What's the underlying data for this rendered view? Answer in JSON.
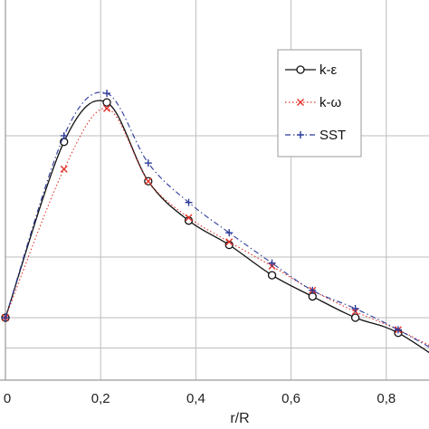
{
  "chart_data": {
    "type": "line",
    "title": "",
    "xlabel": "r/R",
    "ylabel": "",
    "xlim": [
      0,
      0.95
    ],
    "ylim": [
      0,
      1.0
    ],
    "xticks": [
      "0",
      "0,2",
      "0,4",
      "0,6",
      "0,8"
    ],
    "xtick_values": [
      0,
      0.2,
      0.4,
      0.6,
      0.8
    ],
    "ytick_values": [
      0.1,
      0.2,
      0.4,
      0.8
    ],
    "grid": true,
    "legend_position": "top-right",
    "series": [
      {
        "name": "k-ε",
        "color": "#111111",
        "line_style": "solid",
        "marker": "circle",
        "x": [
          0.0,
          0.123,
          0.213,
          0.3,
          0.385,
          0.47,
          0.56,
          0.645,
          0.735,
          0.825,
          0.95
        ],
        "y": [
          0.2,
          0.78,
          0.91,
          0.65,
          0.52,
          0.44,
          0.34,
          0.27,
          0.2,
          0.15,
          0.02
        ],
        "marker_x": [
          0.0,
          0.123,
          0.213,
          0.3,
          0.385,
          0.47,
          0.56,
          0.645,
          0.735,
          0.825
        ],
        "marker_y": [
          0.2,
          0.78,
          0.91,
          0.65,
          0.52,
          0.44,
          0.34,
          0.27,
          0.2,
          0.15
        ]
      },
      {
        "name": "k-ω",
        "color": "#e0322a",
        "line_style": "dotted",
        "marker": "x",
        "x": [
          0.0,
          0.123,
          0.213,
          0.3,
          0.385,
          0.47,
          0.56,
          0.645,
          0.735,
          0.825,
          0.95
        ],
        "y": [
          0.2,
          0.69,
          0.89,
          0.65,
          0.53,
          0.45,
          0.37,
          0.29,
          0.22,
          0.16,
          0.06
        ],
        "marker_x": [
          0.0,
          0.123,
          0.213,
          0.3,
          0.385,
          0.47,
          0.56,
          0.645,
          0.735,
          0.825
        ],
        "marker_y": [
          0.2,
          0.69,
          0.89,
          0.65,
          0.53,
          0.45,
          0.37,
          0.29,
          0.22,
          0.16
        ]
      },
      {
        "name": "SST",
        "color": "#2b3a9a",
        "line_style": "dashdot",
        "marker": "plus",
        "x": [
          0.0,
          0.123,
          0.213,
          0.3,
          0.385,
          0.47,
          0.56,
          0.645,
          0.735,
          0.825,
          0.95
        ],
        "y": [
          0.2,
          0.8,
          0.94,
          0.71,
          0.58,
          0.48,
          0.38,
          0.29,
          0.23,
          0.16,
          0.05
        ],
        "marker_x": [
          0.0,
          0.123,
          0.213,
          0.3,
          0.385,
          0.47,
          0.56,
          0.645,
          0.735,
          0.825
        ],
        "marker_y": [
          0.2,
          0.8,
          0.94,
          0.71,
          0.58,
          0.48,
          0.38,
          0.29,
          0.23,
          0.16
        ]
      }
    ]
  }
}
